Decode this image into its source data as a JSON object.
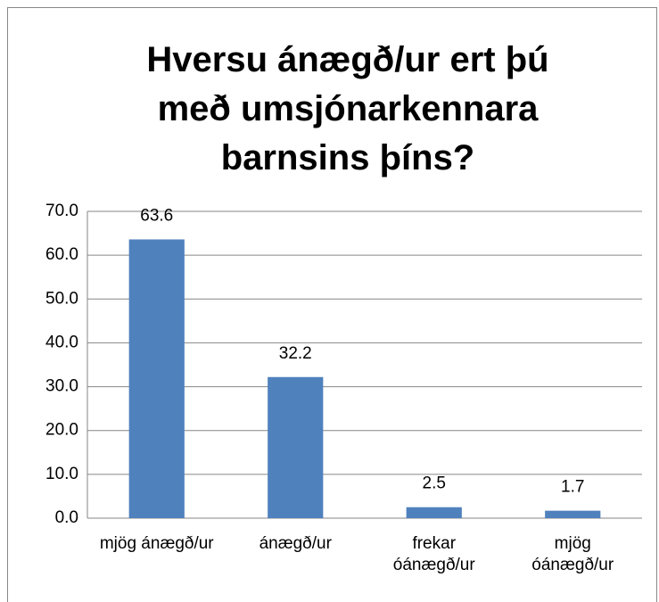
{
  "chart_data": {
    "type": "bar",
    "title": "Hversu ánægð/ur ert þú með umsjónarkennara barnsins þíns?",
    "categories": [
      "mjög ánægð/ur",
      "ánægð/ur",
      "frekar óánægð/ur",
      "mjög óánægð/ur"
    ],
    "values": [
      63.6,
      32.2,
      2.5,
      1.7
    ],
    "color": "#4f81bd",
    "ylim": [
      0,
      70
    ],
    "yticks": [
      {
        "value": 0,
        "label": "0.0"
      },
      {
        "value": 10,
        "label": "10.0"
      },
      {
        "value": 20,
        "label": "20.0"
      },
      {
        "value": 30,
        "label": "30.0"
      },
      {
        "value": 40,
        "label": "40.0"
      },
      {
        "value": 50,
        "label": "50.0"
      },
      {
        "value": 60,
        "label": "60.0"
      },
      {
        "value": 70,
        "label": "70.0"
      }
    ],
    "grid": true
  }
}
